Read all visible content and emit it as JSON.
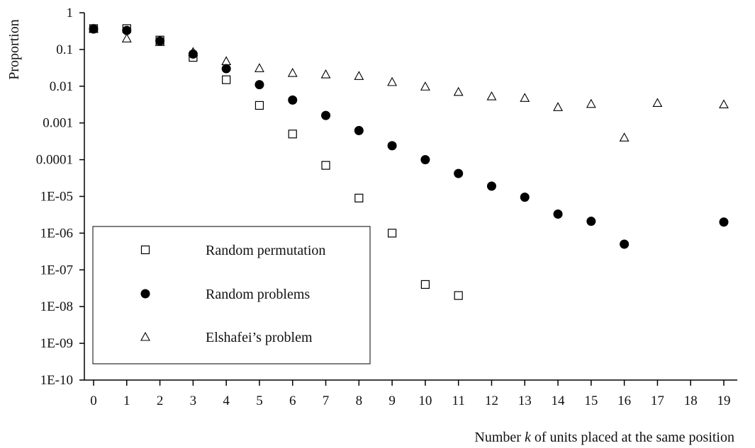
{
  "chart_data": {
    "type": "scatter",
    "title": "",
    "xlabel_prefix": "Number ",
    "xlabel_var": "k",
    "xlabel_suffix": " of units placed at the same position",
    "ylabel": "Proportion",
    "yscale": "log",
    "ylim": [
      1e-10,
      1
    ],
    "xlim": [
      0,
      19
    ],
    "x_ticks": [
      "0",
      "1",
      "2",
      "3",
      "4",
      "5",
      "6",
      "7",
      "8",
      "9",
      "10",
      "11",
      "12",
      "13",
      "14",
      "15",
      "16",
      "17",
      "18",
      "19"
    ],
    "y_ticks": [
      {
        "value": 1,
        "label": "1"
      },
      {
        "value": 0.1,
        "label": "0.1"
      },
      {
        "value": 0.01,
        "label": "0.01"
      },
      {
        "value": 0.001,
        "label": "0.001"
      },
      {
        "value": 0.0001,
        "label": "0.0001"
      },
      {
        "value": 1e-05,
        "label": "1E-05"
      },
      {
        "value": 1e-06,
        "label": "1E-06"
      },
      {
        "value": 1e-07,
        "label": "1E-07"
      },
      {
        "value": 1e-08,
        "label": "1E-08"
      },
      {
        "value": 1e-09,
        "label": "1E-09"
      },
      {
        "value": 1e-10,
        "label": "1E-10"
      }
    ],
    "grid": false,
    "legend_position": "bottom-left",
    "series": [
      {
        "name": "Random permutation",
        "marker": "square-open",
        "points": [
          [
            0,
            0.37
          ],
          [
            1,
            0.37
          ],
          [
            2,
            0.18
          ],
          [
            3,
            0.061
          ],
          [
            4,
            0.015
          ],
          [
            5,
            0.003
          ],
          [
            6,
            0.0005
          ],
          [
            7,
            7e-05
          ],
          [
            8,
            9e-06
          ],
          [
            9,
            1e-06
          ],
          [
            10,
            4e-08
          ],
          [
            11,
            2e-08
          ]
        ]
      },
      {
        "name": "Random problems",
        "marker": "circle-filled",
        "points": [
          [
            0,
            0.36
          ],
          [
            1,
            0.33
          ],
          [
            2,
            0.17
          ],
          [
            3,
            0.075
          ],
          [
            4,
            0.03
          ],
          [
            5,
            0.011
          ],
          [
            6,
            0.0042
          ],
          [
            7,
            0.0016
          ],
          [
            8,
            0.00062
          ],
          [
            9,
            0.00024
          ],
          [
            10,
            0.0001
          ],
          [
            11,
            4.2e-05
          ],
          [
            12,
            1.9e-05
          ],
          [
            13,
            9.5e-06
          ],
          [
            14,
            3.3e-06
          ],
          [
            15,
            2.1e-06
          ],
          [
            16,
            5e-07
          ],
          [
            19,
            2e-06
          ]
        ]
      },
      {
        "name": "Elshafei’s problem",
        "marker": "triangle-open",
        "points": [
          [
            0,
            0.37
          ],
          [
            1,
            0.2
          ],
          [
            2,
            0.16
          ],
          [
            3,
            0.085
          ],
          [
            4,
            0.048
          ],
          [
            5,
            0.031
          ],
          [
            6,
            0.023
          ],
          [
            7,
            0.021
          ],
          [
            8,
            0.019
          ],
          [
            9,
            0.013
          ],
          [
            10,
            0.0098
          ],
          [
            11,
            0.007
          ],
          [
            12,
            0.0053
          ],
          [
            13,
            0.0048
          ],
          [
            14,
            0.0027
          ],
          [
            15,
            0.0033
          ],
          [
            16,
            0.0004
          ],
          [
            17,
            0.0035
          ],
          [
            19,
            0.0032
          ]
        ]
      }
    ]
  }
}
